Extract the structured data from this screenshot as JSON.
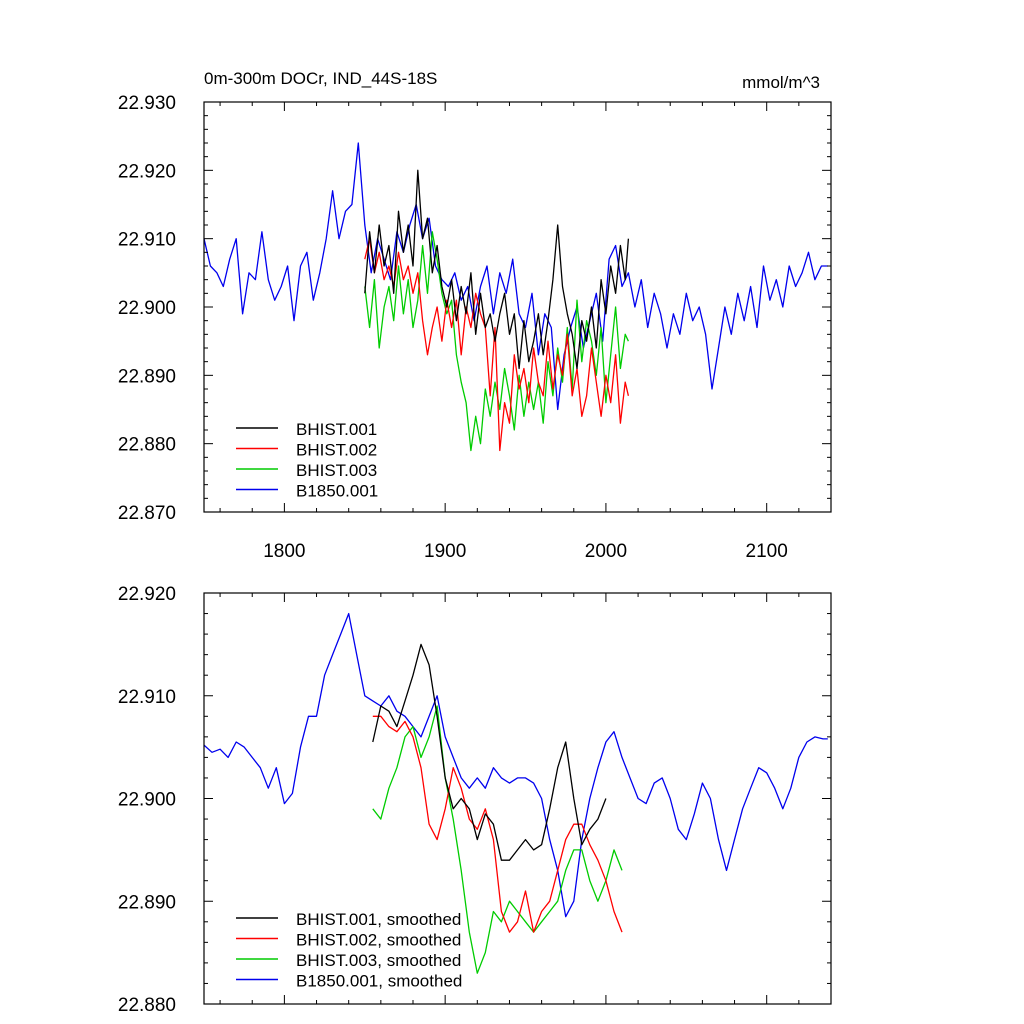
{
  "chart_data": [
    {
      "type": "line",
      "title_left": "0m-300m DOCr, IND_44S-18S",
      "title_right": "mmol/m^3",
      "xlim": [
        1750,
        2140
      ],
      "ylim": [
        22.87,
        22.93
      ],
      "xticks": [
        1800,
        1900,
        2000,
        2100
      ],
      "xticklabels": [
        "1800",
        "1900",
        "2000",
        "2100"
      ],
      "yticks": [
        22.87,
        22.88,
        22.89,
        22.9,
        22.91,
        22.92,
        22.93
      ],
      "yticklabels": [
        "22.870",
        "22.880",
        "22.890",
        "22.900",
        "22.910",
        "22.920",
        "22.930"
      ],
      "legend_position": "bottom-left",
      "series": [
        {
          "name": "BHIST.001",
          "color": "#000000",
          "x": [
            1850,
            1853,
            1856,
            1859,
            1862,
            1865,
            1868,
            1871,
            1874,
            1877,
            1880,
            1883,
            1886,
            1889,
            1892,
            1895,
            1898,
            1901,
            1904,
            1907,
            1910,
            1913,
            1916,
            1919,
            1922,
            1925,
            1928,
            1931,
            1934,
            1937,
            1940,
            1943,
            1946,
            1949,
            1952,
            1955,
            1958,
            1961,
            1964,
            1967,
            1970,
            1973,
            1976,
            1979,
            1982,
            1985,
            1988,
            1991,
            1994,
            1997,
            2000,
            2003,
            2006,
            2009,
            2012,
            2014
          ],
          "y": [
            22.902,
            22.911,
            22.905,
            22.912,
            22.906,
            22.909,
            22.902,
            22.914,
            22.908,
            22.912,
            22.906,
            22.92,
            22.91,
            22.913,
            22.905,
            22.909,
            22.903,
            22.9,
            22.904,
            22.898,
            22.903,
            22.899,
            22.905,
            22.896,
            22.902,
            22.897,
            22.899,
            22.895,
            22.899,
            22.902,
            22.896,
            22.899,
            22.891,
            22.898,
            22.892,
            22.895,
            22.899,
            22.893,
            22.898,
            22.904,
            22.912,
            22.903,
            22.899,
            22.896,
            22.891,
            22.898,
            22.895,
            22.9,
            22.894,
            22.904,
            22.899,
            22.906,
            22.902,
            22.909,
            22.904,
            22.91
          ]
        },
        {
          "name": "BHIST.002",
          "color": "#ff0000",
          "x": [
            1850,
            1853,
            1856,
            1859,
            1862,
            1865,
            1868,
            1871,
            1874,
            1877,
            1880,
            1883,
            1886,
            1889,
            1892,
            1895,
            1898,
            1901,
            1904,
            1907,
            1910,
            1913,
            1916,
            1919,
            1922,
            1925,
            1928,
            1931,
            1934,
            1937,
            1940,
            1943,
            1946,
            1949,
            1952,
            1955,
            1958,
            1961,
            1964,
            1967,
            1970,
            1973,
            1976,
            1979,
            1982,
            1985,
            1988,
            1991,
            1994,
            1997,
            2000,
            2003,
            2006,
            2009,
            2012,
            2014
          ],
          "y": [
            22.907,
            22.91,
            22.905,
            22.908,
            22.904,
            22.906,
            22.903,
            22.908,
            22.904,
            22.906,
            22.902,
            22.905,
            22.898,
            22.893,
            22.897,
            22.9,
            22.895,
            22.901,
            22.897,
            22.901,
            22.893,
            22.9,
            22.897,
            22.902,
            22.899,
            22.897,
            22.887,
            22.897,
            22.879,
            22.886,
            22.883,
            22.893,
            22.888,
            22.891,
            22.886,
            22.894,
            22.889,
            22.887,
            22.895,
            22.888,
            22.893,
            22.89,
            22.896,
            22.887,
            22.891,
            22.884,
            22.887,
            22.894,
            22.889,
            22.884,
            22.89,
            22.886,
            22.893,
            22.883,
            22.889,
            22.887
          ]
        },
        {
          "name": "BHIST.003",
          "color": "#00cc00",
          "x": [
            1850,
            1853,
            1856,
            1859,
            1862,
            1865,
            1868,
            1871,
            1874,
            1877,
            1880,
            1883,
            1886,
            1889,
            1892,
            1895,
            1898,
            1901,
            1904,
            1907,
            1910,
            1913,
            1916,
            1919,
            1922,
            1925,
            1928,
            1931,
            1934,
            1937,
            1940,
            1943,
            1946,
            1949,
            1952,
            1955,
            1958,
            1961,
            1964,
            1967,
            1970,
            1973,
            1976,
            1979,
            1982,
            1985,
            1988,
            1991,
            1994,
            1997,
            2000,
            2003,
            2006,
            2009,
            2012,
            2014
          ],
          "y": [
            22.903,
            22.897,
            22.904,
            22.894,
            22.9,
            22.903,
            22.898,
            22.906,
            22.899,
            22.904,
            22.897,
            22.901,
            22.909,
            22.902,
            22.911,
            22.907,
            22.902,
            22.899,
            22.901,
            22.893,
            22.889,
            22.886,
            22.879,
            22.884,
            22.88,
            22.888,
            22.884,
            22.889,
            22.885,
            22.891,
            22.887,
            22.882,
            22.89,
            22.884,
            22.889,
            22.885,
            22.889,
            22.883,
            22.892,
            22.887,
            22.894,
            22.889,
            22.897,
            22.888,
            22.901,
            22.892,
            22.898,
            22.895,
            22.89,
            22.897,
            22.886,
            22.893,
            22.9,
            22.891,
            22.896,
            22.895
          ]
        },
        {
          "name": "B1850.001",
          "color": "#0000ee",
          "x": [
            1750,
            1754,
            1758,
            1762,
            1766,
            1770,
            1774,
            1778,
            1782,
            1786,
            1790,
            1794,
            1798,
            1802,
            1806,
            1810,
            1814,
            1818,
            1822,
            1826,
            1830,
            1834,
            1838,
            1842,
            1846,
            1850,
            1854,
            1858,
            1862,
            1866,
            1870,
            1874,
            1878,
            1882,
            1886,
            1890,
            1894,
            1898,
            1902,
            1906,
            1910,
            1914,
            1918,
            1922,
            1926,
            1930,
            1934,
            1938,
            1942,
            1946,
            1950,
            1954,
            1958,
            1962,
            1966,
            1970,
            1974,
            1978,
            1982,
            1986,
            1990,
            1994,
            1998,
            2002,
            2006,
            2010,
            2014,
            2018,
            2022,
            2026,
            2030,
            2034,
            2038,
            2042,
            2046,
            2050,
            2054,
            2058,
            2062,
            2066,
            2070,
            2074,
            2078,
            2082,
            2086,
            2090,
            2094,
            2098,
            2102,
            2106,
            2110,
            2114,
            2118,
            2122,
            2126,
            2130,
            2134,
            2138
          ],
          "y": [
            22.91,
            22.906,
            22.905,
            22.903,
            22.907,
            22.91,
            22.899,
            22.905,
            22.904,
            22.911,
            22.904,
            22.901,
            22.903,
            22.906,
            22.898,
            22.906,
            22.908,
            22.901,
            22.905,
            22.91,
            22.917,
            22.91,
            22.914,
            22.915,
            22.924,
            22.912,
            22.905,
            22.91,
            22.907,
            22.904,
            22.911,
            22.908,
            22.912,
            22.915,
            22.91,
            22.913,
            22.906,
            22.904,
            22.903,
            22.905,
            22.901,
            22.903,
            22.898,
            22.903,
            22.906,
            22.899,
            22.905,
            22.902,
            22.907,
            22.899,
            22.897,
            22.902,
            22.893,
            22.899,
            22.897,
            22.885,
            22.893,
            22.897,
            22.9,
            22.894,
            22.898,
            22.902,
            22.895,
            22.907,
            22.909,
            22.903,
            22.905,
            22.9,
            22.904,
            22.897,
            22.902,
            22.899,
            22.894,
            22.899,
            22.896,
            22.902,
            22.898,
            22.9,
            22.896,
            22.888,
            22.894,
            22.9,
            22.896,
            22.902,
            22.898,
            22.903,
            22.897,
            22.906,
            22.901,
            22.904,
            22.9,
            22.906,
            22.903,
            22.905,
            22.908,
            22.904,
            22.906,
            22.906
          ]
        }
      ]
    },
    {
      "type": "line",
      "xlim": [
        1750,
        2140
      ],
      "ylim": [
        22.88,
        22.92
      ],
      "xticks": [
        1800,
        1900,
        2000,
        2100
      ],
      "yticks": [
        22.88,
        22.89,
        22.9,
        22.91,
        22.92
      ],
      "yticklabels": [
        "22.880",
        "22.890",
        "22.900",
        "22.910",
        "22.920"
      ],
      "legend_position": "bottom-left",
      "series": [
        {
          "name": "BHIST.001, smoothed",
          "color": "#000000",
          "x": [
            1855,
            1860,
            1865,
            1870,
            1875,
            1880,
            1885,
            1890,
            1895,
            1900,
            1905,
            1910,
            1915,
            1920,
            1925,
            1930,
            1935,
            1940,
            1945,
            1950,
            1955,
            1960,
            1965,
            1970,
            1975,
            1980,
            1985,
            1990,
            1995,
            2000
          ],
          "y": [
            22.9055,
            22.909,
            22.9085,
            22.907,
            22.9095,
            22.912,
            22.915,
            22.913,
            22.908,
            22.902,
            22.899,
            22.9,
            22.899,
            22.896,
            22.8985,
            22.8975,
            22.894,
            22.894,
            22.895,
            22.896,
            22.895,
            22.8955,
            22.899,
            22.903,
            22.9055,
            22.9,
            22.8955,
            22.897,
            22.898,
            22.9
          ]
        },
        {
          "name": "BHIST.002, smoothed",
          "color": "#ff0000",
          "x": [
            1855,
            1860,
            1865,
            1870,
            1875,
            1880,
            1885,
            1890,
            1895,
            1900,
            1905,
            1910,
            1915,
            1920,
            1925,
            1930,
            1935,
            1940,
            1945,
            1950,
            1955,
            1960,
            1965,
            1970,
            1975,
            1980,
            1985,
            1990,
            1995,
            2000,
            2005,
            2010
          ],
          "y": [
            22.908,
            22.908,
            22.907,
            22.9065,
            22.9075,
            22.906,
            22.903,
            22.8975,
            22.896,
            22.899,
            22.903,
            22.901,
            22.898,
            22.897,
            22.899,
            22.896,
            22.889,
            22.887,
            22.888,
            22.891,
            22.887,
            22.889,
            22.89,
            22.893,
            22.896,
            22.8975,
            22.8975,
            22.8955,
            22.894,
            22.892,
            22.889,
            22.887
          ]
        },
        {
          "name": "BHIST.003, smoothed",
          "color": "#00cc00",
          "x": [
            1855,
            1860,
            1865,
            1870,
            1875,
            1880,
            1885,
            1890,
            1895,
            1900,
            1905,
            1910,
            1915,
            1920,
            1925,
            1930,
            1935,
            1940,
            1945,
            1950,
            1955,
            1960,
            1965,
            1970,
            1975,
            1980,
            1985,
            1990,
            1995,
            2000,
            2005,
            2010
          ],
          "y": [
            22.899,
            22.898,
            22.901,
            22.903,
            22.906,
            22.907,
            22.904,
            22.906,
            22.909,
            22.902,
            22.898,
            22.893,
            22.887,
            22.883,
            22.885,
            22.889,
            22.888,
            22.89,
            22.889,
            22.888,
            22.887,
            22.888,
            22.889,
            22.89,
            22.893,
            22.895,
            22.895,
            22.892,
            22.89,
            22.892,
            22.895,
            22.893
          ]
        },
        {
          "name": "B1850.001, smoothed",
          "color": "#0000ee",
          "x": [
            1750,
            1755,
            1760,
            1765,
            1770,
            1775,
            1780,
            1785,
            1790,
            1795,
            1800,
            1805,
            1810,
            1815,
            1820,
            1825,
            1830,
            1835,
            1840,
            1845,
            1850,
            1855,
            1860,
            1865,
            1870,
            1875,
            1880,
            1885,
            1890,
            1895,
            1900,
            1905,
            1910,
            1915,
            1920,
            1925,
            1930,
            1935,
            1940,
            1945,
            1950,
            1955,
            1960,
            1965,
            1970,
            1975,
            1980,
            1985,
            1990,
            1995,
            2000,
            2005,
            2010,
            2015,
            2020,
            2025,
            2030,
            2035,
            2040,
            2045,
            2050,
            2055,
            2060,
            2065,
            2070,
            2075,
            2080,
            2085,
            2090,
            2095,
            2100,
            2105,
            2110,
            2115,
            2120,
            2125,
            2130,
            2135,
            2138
          ],
          "y": [
            22.9052,
            22.9045,
            22.9048,
            22.904,
            22.9055,
            22.905,
            22.904,
            22.903,
            22.901,
            22.903,
            22.8995,
            22.9005,
            22.905,
            22.908,
            22.908,
            22.912,
            22.914,
            22.916,
            22.918,
            22.914,
            22.91,
            22.9095,
            22.909,
            22.91,
            22.9085,
            22.908,
            22.907,
            22.906,
            22.908,
            22.91,
            22.906,
            22.904,
            22.902,
            22.901,
            22.902,
            22.901,
            22.903,
            22.902,
            22.9015,
            22.902,
            22.902,
            22.9015,
            22.9,
            22.896,
            22.893,
            22.8885,
            22.89,
            22.896,
            22.9,
            22.903,
            22.9055,
            22.9065,
            22.904,
            22.902,
            22.9,
            22.8995,
            22.9015,
            22.902,
            22.9,
            22.897,
            22.896,
            22.8985,
            22.9015,
            22.9,
            22.896,
            22.893,
            22.896,
            22.899,
            22.901,
            22.903,
            22.9025,
            22.901,
            22.899,
            22.901,
            22.904,
            22.9055,
            22.906,
            22.9058,
            22.9058
          ]
        }
      ]
    }
  ]
}
